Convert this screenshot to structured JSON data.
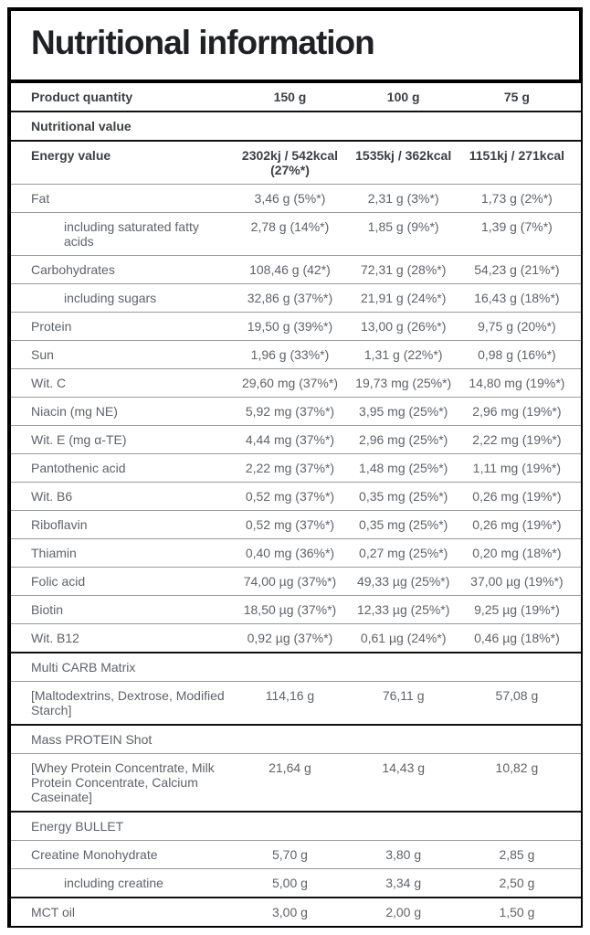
{
  "title": "Nutritional information",
  "colors": {
    "border": "#000000",
    "text_primary": "#202124",
    "text_secondary": "#5f6368",
    "separator": "#9a9a9a",
    "background": "#ffffff"
  },
  "table": {
    "columns": [
      "150 g",
      "100 g",
      "75 g"
    ],
    "rows": [
      {
        "label": "Product quantity",
        "values": [
          "150 g",
          "100 g",
          "75 g"
        ],
        "bold": true,
        "indent": false,
        "heavy_top": false
      },
      {
        "label": "Nutritional value",
        "values": [],
        "bold": true,
        "indent": false,
        "heavy_top": true
      },
      {
        "label": "Energy value",
        "values": [
          "2302kj / 542kcal (27%*)",
          "1535kj / 362kcal",
          "1151kj / 271kcal"
        ],
        "bold": true,
        "indent": false,
        "heavy_top": true
      },
      {
        "label": "Fat",
        "values": [
          "3,46 g (5%*)",
          "2,31 g (3%*)",
          "1,73 g (2%*)"
        ],
        "bold": false,
        "indent": false,
        "heavy_top": false
      },
      {
        "label": "including saturated fatty acids",
        "values": [
          "2,78 g (14%*)",
          "1,85 g (9%*)",
          "1,39 g (7%*)"
        ],
        "bold": false,
        "indent": true,
        "heavy_top": false
      },
      {
        "label": "Carbohydrates",
        "values": [
          "108,46 g (42*)",
          "72,31 g (28%*)",
          "54,23 g (21%*)"
        ],
        "bold": false,
        "indent": false,
        "heavy_top": false
      },
      {
        "label": "including sugars",
        "values": [
          "32,86 g (37%*)",
          "21,91 g (24%*)",
          "16,43 g (18%*)"
        ],
        "bold": false,
        "indent": true,
        "heavy_top": false
      },
      {
        "label": "Protein",
        "values": [
          "19,50 g (39%*)",
          "13,00 g (26%*)",
          "9,75 g (20%*)"
        ],
        "bold": false,
        "indent": false,
        "heavy_top": false
      },
      {
        "label": "Sun",
        "values": [
          "1,96 g (33%*)",
          "1,31 g (22%*)",
          "0,98 g (16%*)"
        ],
        "bold": false,
        "indent": false,
        "heavy_top": false
      },
      {
        "label": "Wit. C",
        "values": [
          "29,60 mg (37%*)",
          "19,73 mg (25%*)",
          "14,80 mg (19%*)"
        ],
        "bold": false,
        "indent": false,
        "heavy_top": false
      },
      {
        "label": "Niacin (mg NE)",
        "values": [
          "5,92 mg (37%*)",
          "3,95 mg (25%*)",
          "2,96 mg (19%*)"
        ],
        "bold": false,
        "indent": false,
        "heavy_top": false
      },
      {
        "label": "Wit. E (mg α-TE)",
        "values": [
          "4,44 mg (37%*)",
          "2,96 mg (25%*)",
          "2,22 mg (19%*)"
        ],
        "bold": false,
        "indent": false,
        "heavy_top": false
      },
      {
        "label": "Pantothenic acid",
        "values": [
          "2,22 mg (37%*)",
          "1,48 mg (25%*)",
          "1,11 mg (19%*)"
        ],
        "bold": false,
        "indent": false,
        "heavy_top": false
      },
      {
        "label": "Wit. B6",
        "values": [
          "0,52 mg (37%*)",
          "0,35 mg (25%*)",
          "0,26 mg (19%*)"
        ],
        "bold": false,
        "indent": false,
        "heavy_top": false
      },
      {
        "label": "Riboflavin",
        "values": [
          "0,52 mg (37%*)",
          "0,35 mg (25%*)",
          "0,26 mg (19%*)"
        ],
        "bold": false,
        "indent": false,
        "heavy_top": false
      },
      {
        "label": "Thiamin",
        "values": [
          "0,40 mg (36%*)",
          "0,27 mg (25%*)",
          "0,20 mg (18%*)"
        ],
        "bold": false,
        "indent": false,
        "heavy_top": false
      },
      {
        "label": "Folic acid",
        "values": [
          "74,00 µg (37%*)",
          "49,33 µg (25%*)",
          "37,00 µg (19%*)"
        ],
        "bold": false,
        "indent": false,
        "heavy_top": false
      },
      {
        "label": "Biotin",
        "values": [
          "18,50 µg (37%*)",
          "12,33 µg (25%*)",
          "9,25 µg (19%*)"
        ],
        "bold": false,
        "indent": false,
        "heavy_top": false
      },
      {
        "label": "Wit. B12",
        "values": [
          "0,92 µg (37%*)",
          "0,61 µg (24%*)",
          "0,46 µg (18%*)"
        ],
        "bold": false,
        "indent": false,
        "heavy_top": false
      },
      {
        "label": "Multi CARB Matrix",
        "values": [],
        "bold": false,
        "indent": false,
        "heavy_top": true
      },
      {
        "label": "[Maltodextrins, Dextrose, Modified Starch]",
        "values": [
          "114,16 g",
          "76,11 g",
          "57,08 g"
        ],
        "bold": false,
        "indent": false,
        "heavy_top": false
      },
      {
        "label": "Mass PROTEIN Shot",
        "values": [],
        "bold": false,
        "indent": false,
        "heavy_top": true
      },
      {
        "label": "[Whey Protein Concentrate, Milk Protein Concentrate, Calcium Caseinate]",
        "values": [
          "21,64 g",
          "14,43 g",
          "10,82 g"
        ],
        "bold": false,
        "indent": false,
        "heavy_top": false
      },
      {
        "label": "Energy BULLET",
        "values": [],
        "bold": false,
        "indent": false,
        "heavy_top": true
      },
      {
        "label": "Creatine Monohydrate",
        "values": [
          "5,70 g",
          "3,80 g",
          "2,85 g"
        ],
        "bold": false,
        "indent": false,
        "heavy_top": false
      },
      {
        "label": "including creatine",
        "values": [
          "5,00 g",
          "3,34 g",
          "2,50 g"
        ],
        "bold": false,
        "indent": true,
        "heavy_top": false
      },
      {
        "label": "MCT oil",
        "values": [
          "3,00 g",
          "2,00 g",
          "1,50 g"
        ],
        "bold": false,
        "indent": false,
        "heavy_top": true
      }
    ]
  }
}
